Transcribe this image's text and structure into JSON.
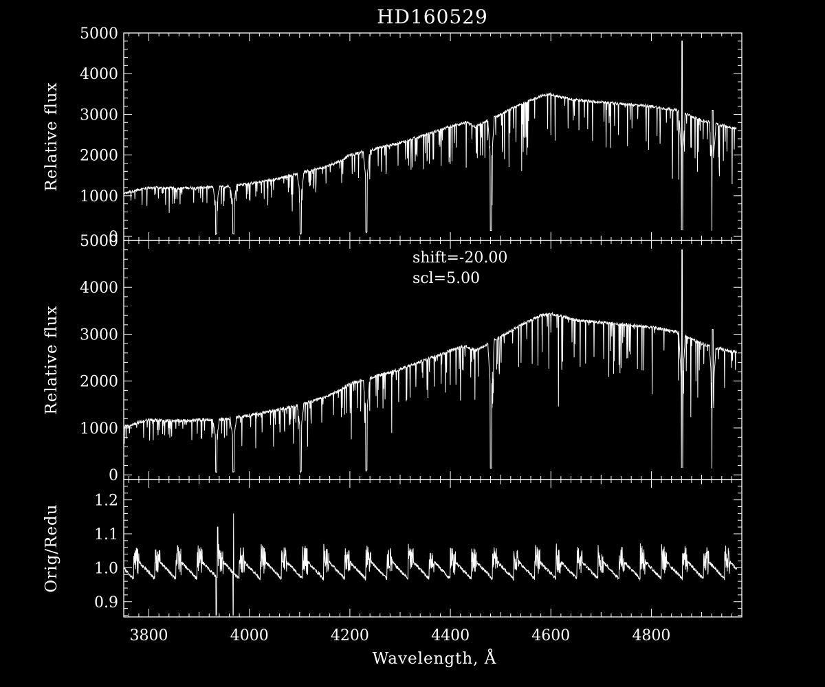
{
  "chart_data": {
    "type": "line",
    "title": "HD160529",
    "xlabel": "Wavelength, Å",
    "xlim": [
      3750,
      4980
    ],
    "x_ticks": [
      "3800",
      "4000",
      "4200",
      "4400",
      "4600",
      "4800"
    ],
    "background": "#000000",
    "foreground": "#ffffff",
    "grid": false,
    "panels": [
      {
        "ylabel": "Relative flux",
        "ylim": [
          -100,
          5000
        ],
        "y_ticks": [
          "0",
          "1000",
          "2000",
          "3000",
          "4000",
          "5000"
        ],
        "annotations": [],
        "series": [
          {
            "x": [
              3750,
              3780,
              3800,
              3850,
              3900,
              3950,
              4000,
              4050,
              4100,
              4150,
              4180,
              4200,
              4250,
              4300,
              4350,
              4400,
              4430,
              4450,
              4500,
              4550,
              4580,
              4600,
              4620,
              4650,
              4700,
              4750,
              4800,
              4850,
              4870,
              4900,
              4950,
              4970
            ],
            "values": [
              1050,
              1150,
              1200,
              1180,
              1200,
              1220,
              1300,
              1400,
              1550,
              1700,
              1850,
              2000,
              2150,
              2300,
              2500,
              2700,
              2800,
              2700,
              3000,
              3300,
              3450,
              3500,
              3420,
              3350,
              3300,
              3250,
              3200,
              3100,
              3000,
              2850,
              2700,
              2650
            ]
          }
        ]
      },
      {
        "ylabel": "Relative flux",
        "ylim": [
          -100,
          5000
        ],
        "y_ticks": [
          "0",
          "1000",
          "2000",
          "3000",
          "4000",
          "5000"
        ],
        "annotations": [
          "shift=-20.00",
          "scl=5.00"
        ],
        "series": [
          {
            "x": [
              3750,
              3780,
              3800,
              3850,
              3900,
              3950,
              4000,
              4050,
              4100,
              4150,
              4180,
              4200,
              4250,
              4300,
              4350,
              4400,
              4430,
              4450,
              4500,
              4550,
              4580,
              4600,
              4620,
              4650,
              4700,
              4750,
              4800,
              4850,
              4870,
              4900,
              4950,
              4970
            ],
            "values": [
              1020,
              1120,
              1170,
              1150,
              1170,
              1190,
              1270,
              1370,
              1500,
              1650,
              1800,
              1950,
              2100,
              2250,
              2450,
              2650,
              2750,
              2650,
              2950,
              3250,
              3400,
              3430,
              3380,
              3300,
              3250,
              3200,
              3150,
              3050,
              2950,
              2800,
              2650,
              2620
            ]
          }
        ]
      },
      {
        "ylabel": "Orig/Redu",
        "ylim": [
          0.855,
          1.26
        ],
        "y_ticks": [
          "0.9",
          "1.0",
          "1.1",
          "1.2"
        ],
        "annotations": [],
        "series": [
          {
            "baseline": 1.0,
            "sawtooth_amplitude": 0.03,
            "order_period_angstrom": 42
          }
        ]
      }
    ]
  }
}
